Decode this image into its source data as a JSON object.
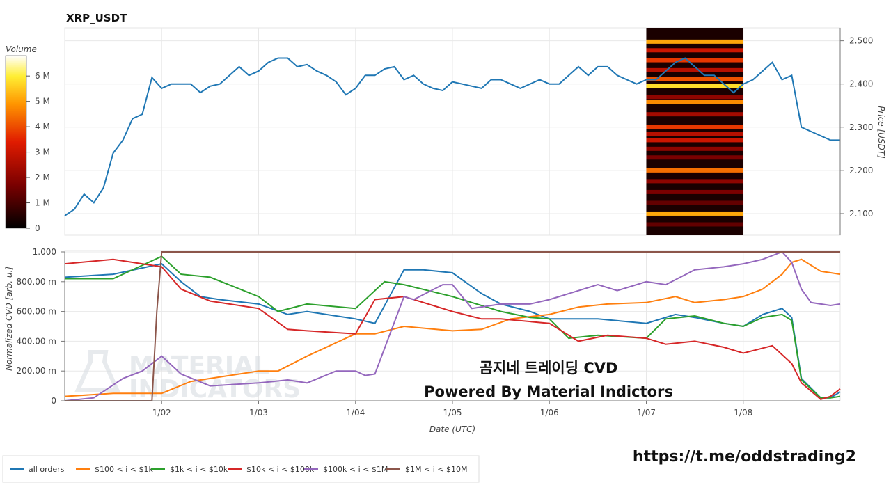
{
  "chart_data": [
    {
      "type": "line",
      "title": "XRP_USDT",
      "ylabel": "Price [USDT]",
      "ylim": [
        2.05,
        2.53
      ],
      "yticks": [
        "2.100",
        "2.200",
        "2.300",
        "2.400",
        "2.500"
      ],
      "heatmap_colorbar": {
        "title": "Volume",
        "ticks": [
          "0",
          "1 M",
          "2 M",
          "3 M",
          "4 M",
          "5 M",
          "6 M"
        ],
        "range": [
          0,
          6800000
        ]
      },
      "heatmap_x_range": [
        "1/07",
        "1/08"
      ],
      "heatmap_levels": [
        {
          "price": 2.498,
          "intensity": 0.75
        },
        {
          "price": 2.478,
          "intensity": 0.45
        },
        {
          "price": 2.455,
          "intensity": 0.55
        },
        {
          "price": 2.432,
          "intensity": 0.4
        },
        {
          "price": 2.412,
          "intensity": 0.6
        },
        {
          "price": 2.395,
          "intensity": 0.85
        },
        {
          "price": 2.37,
          "intensity": 0.3
        },
        {
          "price": 2.358,
          "intensity": 0.7
        },
        {
          "price": 2.33,
          "intensity": 0.35
        },
        {
          "price": 2.3,
          "intensity": 0.55
        },
        {
          "price": 2.285,
          "intensity": 0.4
        },
        {
          "price": 2.27,
          "intensity": 0.45
        },
        {
          "price": 2.25,
          "intensity": 0.3
        },
        {
          "price": 2.23,
          "intensity": 0.25
        },
        {
          "price": 2.2,
          "intensity": 0.65
        },
        {
          "price": 2.175,
          "intensity": 0.3
        },
        {
          "price": 2.15,
          "intensity": 0.25
        },
        {
          "price": 2.125,
          "intensity": 0.2
        },
        {
          "price": 2.1,
          "intensity": 0.75
        },
        {
          "price": 2.075,
          "intensity": 0.2
        }
      ],
      "series": [
        {
          "color": "#1f77b4",
          "x": [
            0,
            0.1,
            0.2,
            0.3,
            0.4,
            0.5,
            0.6,
            0.7,
            0.8,
            0.9,
            1,
            1.1,
            1.2,
            1.3,
            1.4,
            1.5,
            1.6,
            1.7,
            1.8,
            1.9,
            2,
            2.1,
            2.2,
            2.3,
            2.4,
            2.5,
            2.6,
            2.7,
            2.8,
            2.9,
            3,
            3.1,
            3.2,
            3.3,
            3.4,
            3.5,
            3.6,
            3.7,
            3.8,
            3.9,
            4,
            4.1,
            4.2,
            4.3,
            4.4,
            4.5,
            4.6,
            4.7,
            4.8,
            4.9,
            5,
            5.1,
            5.2,
            5.3,
            5.4,
            5.5,
            5.6,
            5.7,
            5.8,
            5.9,
            6,
            6.1,
            6.2,
            6.3,
            6.4,
            6.5,
            6.6,
            6.7,
            6.8,
            6.9,
            7,
            7.1,
            7.2,
            7.3,
            7.4,
            7.5,
            7.6,
            7.7,
            7.8,
            7.9,
            8
          ],
          "y": [
            2.095,
            2.11,
            2.145,
            2.125,
            2.16,
            2.24,
            2.27,
            2.32,
            2.33,
            2.415,
            2.39,
            2.4,
            2.4,
            2.4,
            2.38,
            2.395,
            2.4,
            2.42,
            2.44,
            2.42,
            2.43,
            2.45,
            2.46,
            2.46,
            2.44,
            2.445,
            2.43,
            2.42,
            2.405,
            2.375,
            2.39,
            2.42,
            2.42,
            2.435,
            2.44,
            2.41,
            2.42,
            2.4,
            2.39,
            2.385,
            2.405,
            2.4,
            2.395,
            2.39,
            2.41,
            2.41,
            2.4,
            2.39,
            2.4,
            2.41,
            2.4,
            2.4,
            2.42,
            2.44,
            2.42,
            2.44,
            2.44,
            2.42,
            2.41,
            2.4,
            2.41,
            2.41,
            2.43,
            2.45,
            2.46,
            2.44,
            2.42,
            2.42,
            2.4,
            2.38,
            2.4,
            2.41,
            2.43,
            2.45,
            2.41,
            2.42,
            2.3,
            2.29,
            2.28,
            2.27,
            2.27
          ]
        }
      ]
    },
    {
      "type": "line",
      "xlabel": "Date (UTC)",
      "ylabel": "Normalized CVD [arb. u.]",
      "ylim": [
        0,
        1
      ],
      "yticks": [
        "0",
        "200.00 m",
        "400.00 m",
        "600.00 m",
        "800.00 m",
        "1.000"
      ],
      "xticks": [
        "1/02",
        "1/03",
        "1/04",
        "1/05",
        "1/06",
        "1/07",
        "1/08"
      ],
      "x_range": [
        0,
        8
      ],
      "series": [
        {
          "name": "all orders",
          "color": "#1f77b4",
          "x": [
            0,
            0.5,
            1,
            1.2,
            1.4,
            1.6,
            2,
            2.3,
            2.5,
            3,
            3.2,
            3.5,
            3.7,
            4,
            4.3,
            4.5,
            4.8,
            5,
            5.5,
            6,
            6.3,
            6.5,
            6.8,
            7,
            7.2,
            7.4,
            7.5,
            7.6,
            7.8,
            7.9,
            8
          ],
          "y": [
            0.83,
            0.85,
            0.92,
            0.8,
            0.7,
            0.68,
            0.65,
            0.58,
            0.6,
            0.55,
            0.52,
            0.88,
            0.88,
            0.86,
            0.72,
            0.65,
            0.6,
            0.55,
            0.55,
            0.52,
            0.58,
            0.56,
            0.52,
            0.5,
            0.58,
            0.62,
            0.56,
            0.15,
            0.02,
            0.02,
            0.06
          ]
        },
        {
          "name": "$100 < i < $1k",
          "color": "#ff7f0e",
          "x": [
            0,
            0.5,
            1,
            1.3,
            1.5,
            2,
            2.2,
            2.5,
            3,
            3.2,
            3.5,
            4,
            4.3,
            4.6,
            5,
            5.3,
            5.6,
            6,
            6.3,
            6.5,
            6.8,
            7,
            7.2,
            7.4,
            7.5,
            7.6,
            7.8,
            8
          ],
          "y": [
            0.03,
            0.05,
            0.05,
            0.13,
            0.15,
            0.2,
            0.2,
            0.3,
            0.45,
            0.45,
            0.5,
            0.47,
            0.48,
            0.55,
            0.58,
            0.63,
            0.65,
            0.66,
            0.7,
            0.66,
            0.68,
            0.7,
            0.75,
            0.85,
            0.93,
            0.95,
            0.87,
            0.85
          ]
        },
        {
          "name": "$1k < i < $10k",
          "color": "#2ca02c",
          "x": [
            0,
            0.5,
            1,
            1.2,
            1.5,
            2,
            2.2,
            2.5,
            3,
            3.3,
            3.5,
            4,
            4.2,
            4.5,
            4.8,
            5,
            5.2,
            5.5,
            6,
            6.2,
            6.5,
            6.8,
            7,
            7.2,
            7.4,
            7.5,
            7.6,
            7.8,
            7.9,
            8
          ],
          "y": [
            0.82,
            0.82,
            0.97,
            0.85,
            0.83,
            0.7,
            0.6,
            0.65,
            0.62,
            0.8,
            0.78,
            0.7,
            0.66,
            0.6,
            0.56,
            0.55,
            0.42,
            0.44,
            0.42,
            0.55,
            0.57,
            0.52,
            0.5,
            0.56,
            0.58,
            0.54,
            0.14,
            0.02,
            0.02,
            0.03
          ]
        },
        {
          "name": "$10k < i < $100k",
          "color": "#d62728",
          "x": [
            0,
            0.5,
            1,
            1.2,
            1.5,
            2,
            2.3,
            2.5,
            3,
            3.2,
            3.5,
            4,
            4.3,
            4.5,
            5,
            5.3,
            5.6,
            6,
            6.2,
            6.5,
            6.8,
            7,
            7.3,
            7.5,
            7.6,
            7.8,
            7.9,
            8
          ],
          "y": [
            0.92,
            0.95,
            0.9,
            0.75,
            0.67,
            0.62,
            0.48,
            0.47,
            0.45,
            0.68,
            0.7,
            0.6,
            0.55,
            0.55,
            0.52,
            0.4,
            0.44,
            0.42,
            0.38,
            0.4,
            0.36,
            0.32,
            0.37,
            0.25,
            0.12,
            0.01,
            0.03,
            0.08
          ]
        },
        {
          "name": "$100k < i < $1M",
          "color": "#9467bd",
          "x": [
            0,
            0.3,
            0.6,
            0.8,
            1,
            1.2,
            1.5,
            2,
            2.3,
            2.5,
            2.8,
            3,
            3.1,
            3.2,
            3.5,
            3.6,
            3.9,
            4,
            4.2,
            4.5,
            4.8,
            5,
            5.2,
            5.5,
            5.7,
            6,
            6.2,
            6.5,
            6.8,
            7,
            7.2,
            7.4,
            7.5,
            7.6,
            7.7,
            7.9,
            8
          ],
          "y": [
            0,
            0.02,
            0.15,
            0.2,
            0.3,
            0.18,
            0.1,
            0.12,
            0.14,
            0.12,
            0.2,
            0.2,
            0.17,
            0.18,
            0.7,
            0.68,
            0.78,
            0.78,
            0.62,
            0.65,
            0.65,
            0.68,
            0.72,
            0.78,
            0.74,
            0.8,
            0.78,
            0.88,
            0.9,
            0.92,
            0.95,
            1.0,
            0.93,
            0.75,
            0.66,
            0.64,
            0.65
          ]
        },
        {
          "name": "$1M < i < $10M",
          "color": "#8c564b",
          "x": [
            0,
            0.9,
            0.95,
            1.0,
            8
          ],
          "y": [
            0,
            0,
            0.6,
            1.0,
            1.0
          ]
        }
      ]
    }
  ],
  "overlay": {
    "line1": "곰지네 트레이딩 CVD",
    "line2": "Powered By Material Indictors",
    "link": "https://t.me/oddstrading2",
    "watermark_line1": "MATERIAL",
    "watermark_line2": "INDICATORS"
  }
}
